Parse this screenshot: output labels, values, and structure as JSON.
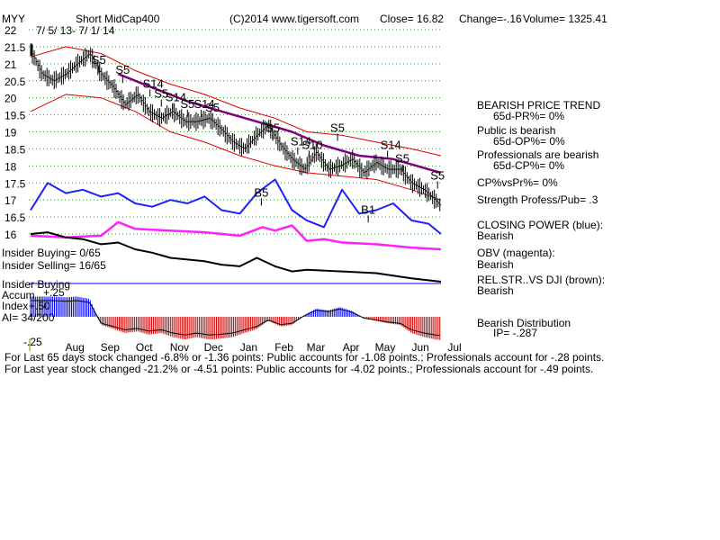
{
  "header": {
    "symbol": "MYY",
    "name": "Short MidCap400",
    "copyright": "(C)2014 www.tigersoft.com",
    "close": "Close=  16.82",
    "change": "Change=-.16",
    "volume": "Volume= 1325.41"
  },
  "date_range": "7/ 5/ 13- 7/ 1/ 14",
  "price_ticks": [
    "22",
    "21.5",
    "21",
    "20.5",
    "20",
    "19.5",
    "19",
    "18.5",
    "18",
    "17.5",
    "17",
    "16.5",
    "16"
  ],
  "month_labels": [
    "Aug",
    "Sep",
    "Oct",
    "Nov",
    "Dec",
    "Jan",
    "Feb",
    "Mar",
    "Apr",
    "May",
    "Jun",
    "Jul"
  ],
  "accum_labels": [
    "Insider Buying",
    "Accum",
    "Index",
    "AI= 34/200"
  ],
  "accum_ticks": [
    "+.25",
    "+.50",
    "-.25"
  ],
  "insider": {
    "buying": "Insider Buying= 0/65",
    "selling": "Insider Selling= 16/65"
  },
  "right_panel": {
    "trend_title": "BEARISH PRICE TREND",
    "pr": "65d-PR%= 0%",
    "public_line": "Public is bearish",
    "op": "65d-OP%= 0%",
    "pros_line": "Professionals are bearish",
    "cp": "65d-CP%= 0%",
    "cpvspr": "CP%vsPr%=  0%",
    "strength": "Strength Profess/Pub= .3",
    "closing_title": "CLOSING POWER (blue):",
    "closing_val": "Bearish",
    "obv_title": "OBV (magenta):",
    "obv_val": "Bearish",
    "rel_title": "REL.STR..VS DJI (brown):",
    "rel_val": "Bearish",
    "dist_title": "Bearish Distribution",
    "ip": "IP= -.287"
  },
  "footer": {
    "line1": "For Last 65 days stock changed -6.8% or -1.36 points:  Public accounts for -1.08 points.;   Professionals account for -.28 points.",
    "line2": "For Last year stock changed -21.2% or -4.51 points:  Public accounts for -4.02 points.;  Professionals account for -.49 points."
  },
  "signals": [
    {
      "label": "S5",
      "date": "2013-09-03",
      "price": 21.0
    },
    {
      "label": "S5",
      "date": "2013-09-24",
      "price": 20.7
    },
    {
      "label": "S14",
      "date": "2013-10-18",
      "price": 20.3
    },
    {
      "label": "S5",
      "date": "2013-10-28",
      "price": 20.0
    },
    {
      "label": "S14",
      "date": "2013-11-07",
      "price": 19.9
    },
    {
      "label": "S5",
      "date": "2013-11-20",
      "price": 19.7
    },
    {
      "label": "S14",
      "date": "2013-12-02",
      "price": 19.7
    },
    {
      "label": "S5",
      "date": "2013-12-12",
      "price": 19.6
    },
    {
      "label": "S5",
      "date": "2014-02-03",
      "price": 19.0
    },
    {
      "label": "S14",
      "date": "2014-02-25",
      "price": 18.6
    },
    {
      "label": "S10",
      "date": "2014-03-07",
      "price": 18.5
    },
    {
      "label": "S5",
      "date": "2014-04-01",
      "price": 19.0
    },
    {
      "label": "S14",
      "date": "2014-05-15",
      "price": 18.5
    },
    {
      "label": "S5",
      "date": "2014-05-28",
      "price": 18.1
    },
    {
      "label": "S5",
      "date": "2014-06-28",
      "price": 17.6
    },
    {
      "label": "B5",
      "date": "2014-01-24",
      "price": 17.1
    },
    {
      "label": "B1",
      "date": "2014-04-28",
      "price": 16.6
    }
  ],
  "chart_data": {
    "type": "line",
    "title": "Short MidCap400",
    "x_range": [
      "2013-07-05",
      "2014-07-01"
    ],
    "price_ylim": [
      16,
      22
    ],
    "price": {
      "name": "MYY",
      "dates": [
        "2013-07-05",
        "2013-07-15",
        "2013-07-25",
        "2013-08-05",
        "2013-08-15",
        "2013-08-26",
        "2013-09-05",
        "2013-09-16",
        "2013-09-26",
        "2013-10-07",
        "2013-10-17",
        "2013-10-28",
        "2013-11-07",
        "2013-11-18",
        "2013-11-28",
        "2013-12-09",
        "2013-12-19",
        "2013-12-30",
        "2014-01-09",
        "2014-01-20",
        "2014-01-30",
        "2014-02-10",
        "2014-02-20",
        "2014-03-03",
        "2014-03-13",
        "2014-03-24",
        "2014-04-03",
        "2014-04-14",
        "2014-04-24",
        "2014-05-05",
        "2014-05-15",
        "2014-05-26",
        "2014-06-05",
        "2014-06-16",
        "2014-06-26",
        "2014-07-01"
      ],
      "values": [
        21.4,
        20.7,
        20.5,
        20.7,
        21.0,
        21.3,
        20.7,
        20.3,
        19.8,
        20.1,
        19.6,
        19.4,
        19.6,
        19.3,
        19.3,
        19.4,
        19.1,
        18.7,
        18.5,
        18.9,
        19.2,
        18.6,
        18.2,
        17.9,
        18.4,
        17.9,
        18.0,
        18.2,
        17.8,
        18.1,
        17.9,
        17.9,
        17.5,
        17.3,
        17.0,
        16.82
      ]
    },
    "ma65": {
      "name": "65-day MA",
      "dates": [
        "2013-09-20",
        "2013-10-20",
        "2013-11-20",
        "2013-12-20",
        "2014-01-20",
        "2014-02-20",
        "2014-03-20",
        "2014-04-20",
        "2014-05-20",
        "2014-06-20",
        "2014-07-01"
      ],
      "values": [
        20.7,
        20.3,
        19.9,
        19.6,
        19.3,
        19.0,
        18.6,
        18.3,
        18.2,
        17.9,
        17.8
      ]
    },
    "band_upper": {
      "name": "upper band",
      "dates": [
        "2013-07-05",
        "2013-08-05",
        "2013-09-05",
        "2013-10-05",
        "2013-11-05",
        "2013-12-05",
        "2014-01-05",
        "2014-02-05",
        "2014-03-05",
        "2014-04-05",
        "2014-05-05",
        "2014-06-05",
        "2014-07-01"
      ],
      "values": [
        21.2,
        21.5,
        21.3,
        20.8,
        20.4,
        20.1,
        19.7,
        19.4,
        19.0,
        18.9,
        18.7,
        18.5,
        18.3
      ]
    },
    "band_lower": {
      "name": "lower band",
      "dates": [
        "2013-07-05",
        "2013-08-05",
        "2013-09-05",
        "2013-10-05",
        "2013-11-05",
        "2013-12-05",
        "2014-01-05",
        "2014-02-05",
        "2014-03-05",
        "2014-04-05",
        "2014-05-05",
        "2014-06-05",
        "2014-07-01"
      ],
      "values": [
        19.6,
        20.1,
        20.0,
        19.6,
        19.0,
        18.7,
        18.3,
        18.0,
        17.8,
        17.7,
        17.6,
        17.3,
        17.0
      ]
    },
    "closing_power": {
      "name": "Closing Power",
      "color": "#1f1fff",
      "dates": [
        "2013-07-05",
        "2013-07-20",
        "2013-08-05",
        "2013-08-20",
        "2013-09-05",
        "2013-09-20",
        "2013-10-05",
        "2013-10-20",
        "2013-11-05",
        "2013-11-20",
        "2013-12-05",
        "2013-12-20",
        "2014-01-05",
        "2014-01-20",
        "2014-02-05",
        "2014-02-20",
        "2014-03-05",
        "2014-03-20",
        "2014-04-05",
        "2014-04-20",
        "2014-05-05",
        "2014-05-20",
        "2014-06-05",
        "2014-06-20",
        "2014-07-01"
      ],
      "values": [
        16.7,
        17.5,
        17.2,
        17.3,
        17.1,
        17.2,
        16.9,
        16.8,
        17.0,
        16.9,
        17.1,
        16.7,
        16.6,
        17.2,
        17.6,
        16.7,
        16.4,
        16.2,
        17.3,
        16.6,
        16.7,
        16.9,
        16.4,
        16.3,
        16.0
      ]
    },
    "obv": {
      "name": "OBV",
      "color": "#ff20ff",
      "dates": [
        "2013-07-05",
        "2013-08-05",
        "2013-09-05",
        "2013-09-20",
        "2013-10-05",
        "2013-11-05",
        "2013-12-05",
        "2014-01-05",
        "2014-01-25",
        "2014-02-05",
        "2014-02-20",
        "2014-03-05",
        "2014-03-20",
        "2014-04-05",
        "2014-05-05",
        "2014-06-05",
        "2014-07-01"
      ],
      "values": [
        15.95,
        15.9,
        15.95,
        16.35,
        16.15,
        16.1,
        16.05,
        15.95,
        16.2,
        16.1,
        16.25,
        15.8,
        15.85,
        15.75,
        15.7,
        15.6,
        15.55
      ]
    },
    "rel_strength": {
      "name": "Rel. Str. vs DJI",
      "color": "#000000",
      "dates": [
        "2013-07-05",
        "2013-07-20",
        "2013-08-05",
        "2013-08-20",
        "2013-09-05",
        "2013-09-20",
        "2013-10-05",
        "2013-10-20",
        "2013-11-05",
        "2013-11-20",
        "2013-12-05",
        "2013-12-20",
        "2014-01-05",
        "2014-01-20",
        "2014-02-05",
        "2014-02-20",
        "2014-03-05",
        "2014-04-05",
        "2014-05-05",
        "2014-06-05",
        "2014-07-01"
      ],
      "values": [
        16.0,
        16.05,
        15.9,
        15.85,
        15.7,
        15.75,
        15.55,
        15.45,
        15.3,
        15.25,
        15.2,
        15.1,
        15.05,
        15.3,
        15.05,
        14.9,
        14.95,
        14.9,
        14.85,
        14.7,
        14.6
      ]
    },
    "accum_index": {
      "name": "Accum. Index",
      "ylim": [
        -0.3,
        0.3
      ],
      "dates": [
        "2013-07-05",
        "2013-07-15",
        "2013-07-25",
        "2013-08-05",
        "2013-08-15",
        "2013-08-26",
        "2013-09-05",
        "2013-09-16",
        "2013-09-26",
        "2013-10-07",
        "2013-10-17",
        "2013-10-28",
        "2013-11-07",
        "2013-11-18",
        "2013-11-28",
        "2013-12-09",
        "2013-12-19",
        "2013-12-30",
        "2014-01-09",
        "2014-01-20",
        "2014-01-30",
        "2014-02-10",
        "2014-02-20",
        "2014-03-03",
        "2014-03-13",
        "2014-03-24",
        "2014-04-03",
        "2014-04-14",
        "2014-04-24",
        "2014-05-05",
        "2014-05-15",
        "2014-05-26",
        "2014-06-05",
        "2014-06-16",
        "2014-06-26",
        "2014-07-01"
      ],
      "values": [
        0.25,
        0.25,
        0.25,
        0.24,
        0.25,
        0.22,
        -0.1,
        -0.15,
        -0.2,
        -0.18,
        -0.22,
        -0.2,
        -0.25,
        -0.28,
        -0.25,
        -0.28,
        -0.27,
        -0.25,
        -0.2,
        -0.15,
        -0.05,
        -0.12,
        -0.1,
        0.02,
        0.1,
        0.08,
        0.12,
        0.07,
        -0.02,
        -0.05,
        -0.08,
        -0.1,
        -0.2,
        -0.25,
        -0.28,
        -0.287
      ]
    }
  }
}
